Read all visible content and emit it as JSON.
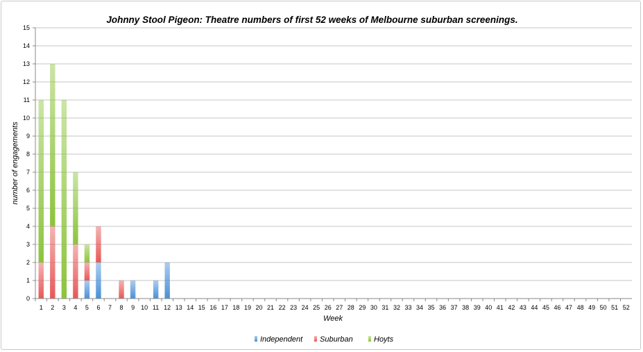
{
  "chart_data": {
    "type": "bar",
    "stacked": true,
    "title": "Johnny Stool Pigeon: Theatre numbers of first 52 weeks of Melbourne suburban screenings.",
    "xlabel": "Week",
    "ylabel": "number of engagements",
    "ylim": [
      0,
      15
    ],
    "y_ticks": [
      "0",
      "1",
      "2",
      "3",
      "4",
      "5",
      "6",
      "7",
      "8",
      "9",
      "10",
      "11",
      "12",
      "13",
      "14",
      "15"
    ],
    "grid": true,
    "legend_position": "bottom",
    "categories": [
      "1",
      "2",
      "3",
      "4",
      "5",
      "6",
      "7",
      "8",
      "9",
      "10",
      "11",
      "12",
      "13",
      "14",
      "15",
      "16",
      "17",
      "18",
      "19",
      "20",
      "21",
      "22",
      "23",
      "24",
      "25",
      "26",
      "27",
      "28",
      "29",
      "30",
      "31",
      "32",
      "33",
      "34",
      "35",
      "36",
      "37",
      "38",
      "39",
      "40",
      "41",
      "42",
      "43",
      "44",
      "45",
      "46",
      "47",
      "48",
      "49",
      "50",
      "51",
      "52"
    ],
    "series": [
      {
        "name": "Independent",
        "color": "#4a90d9",
        "values": [
          0,
          0,
          0,
          0,
          1,
          2,
          0,
          0,
          1,
          0,
          1,
          2,
          0,
          0,
          0,
          0,
          0,
          0,
          0,
          0,
          0,
          0,
          0,
          0,
          0,
          0,
          0,
          0,
          0,
          0,
          0,
          0,
          0,
          0,
          0,
          0,
          0,
          0,
          0,
          0,
          0,
          0,
          0,
          0,
          0,
          0,
          0,
          0,
          0,
          0,
          0,
          0
        ]
      },
      {
        "name": "Suburban",
        "color": "#e85858",
        "values": [
          2,
          4,
          0,
          3,
          1,
          2,
          0,
          1,
          0,
          0,
          0,
          0,
          0,
          0,
          0,
          0,
          0,
          0,
          0,
          0,
          0,
          0,
          0,
          0,
          0,
          0,
          0,
          0,
          0,
          0,
          0,
          0,
          0,
          0,
          0,
          0,
          0,
          0,
          0,
          0,
          0,
          0,
          0,
          0,
          0,
          0,
          0,
          0,
          0,
          0,
          0,
          0
        ]
      },
      {
        "name": "Hoyts",
        "color": "#8cc43c",
        "values": [
          9,
          9,
          11,
          4,
          1,
          0,
          0,
          0,
          0,
          0,
          0,
          0,
          0,
          0,
          0,
          0,
          0,
          0,
          0,
          0,
          0,
          0,
          0,
          0,
          0,
          0,
          0,
          0,
          0,
          0,
          0,
          0,
          0,
          0,
          0,
          0,
          0,
          0,
          0,
          0,
          0,
          0,
          0,
          0,
          0,
          0,
          0,
          0,
          0,
          0,
          0,
          0
        ]
      }
    ]
  }
}
